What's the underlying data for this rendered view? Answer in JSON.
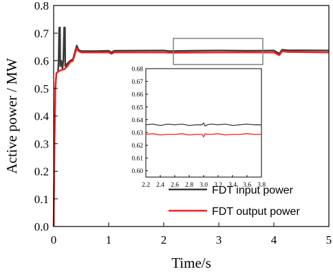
{
  "chart_data": [
    {
      "type": "line",
      "title": "",
      "xlabel": "Time/s",
      "ylabel": "Active power / MW",
      "xlim": [
        0,
        5
      ],
      "ylim": [
        0,
        0.8
      ],
      "xticks": [
        "0",
        "1",
        "2",
        "3",
        "4",
        "5"
      ],
      "yticks": [
        "0.0",
        "0.1",
        "0.2",
        "0.3",
        "0.4",
        "0.5",
        "0.6",
        "0.7",
        "0.8"
      ],
      "legend_position": "bottom-right",
      "grid": false,
      "series": [
        {
          "name": "FDT input power",
          "color": "#3a3a3a",
          "points": [
            [
              0.0,
              0.0
            ],
            [
              0.015,
              0.3
            ],
            [
              0.03,
              0.5
            ],
            [
              0.05,
              0.555
            ],
            [
              0.08,
              0.56
            ],
            [
              0.09,
              0.6
            ],
            [
              0.1,
              0.72
            ],
            [
              0.115,
              0.72
            ],
            [
              0.12,
              0.58
            ],
            [
              0.14,
              0.6
            ],
            [
              0.16,
              0.57
            ],
            [
              0.175,
              0.6
            ],
            [
              0.19,
              0.72
            ],
            [
              0.205,
              0.72
            ],
            [
              0.21,
              0.58
            ],
            [
              0.25,
              0.59
            ],
            [
              0.3,
              0.6
            ],
            [
              0.35,
              0.605
            ],
            [
              0.42,
              0.655
            ],
            [
              0.45,
              0.64
            ],
            [
              0.5,
              0.635
            ],
            [
              0.8,
              0.635
            ],
            [
              1.0,
              0.636
            ],
            [
              1.05,
              0.63
            ],
            [
              1.1,
              0.636
            ],
            [
              2.0,
              0.637
            ],
            [
              2.1,
              0.635
            ],
            [
              2.5,
              0.636
            ],
            [
              3.0,
              0.637
            ],
            [
              3.5,
              0.636
            ],
            [
              4.0,
              0.637
            ],
            [
              4.1,
              0.626
            ],
            [
              4.15,
              0.64
            ],
            [
              4.25,
              0.638
            ],
            [
              5.0,
              0.637
            ]
          ]
        },
        {
          "name": "FDT output power",
          "color": "#ff1a1a",
          "points": [
            [
              0.0,
              0.0
            ],
            [
              0.015,
              0.3
            ],
            [
              0.03,
              0.5
            ],
            [
              0.05,
              0.555
            ],
            [
              0.08,
              0.56
            ],
            [
              0.12,
              0.565
            ],
            [
              0.2,
              0.57
            ],
            [
              0.25,
              0.58
            ],
            [
              0.3,
              0.595
            ],
            [
              0.35,
              0.6
            ],
            [
              0.42,
              0.645
            ],
            [
              0.45,
              0.635
            ],
            [
              0.5,
              0.63
            ],
            [
              1.0,
              0.63
            ],
            [
              1.05,
              0.625
            ],
            [
              1.1,
              0.63
            ],
            [
              2.0,
              0.63
            ],
            [
              2.1,
              0.629
            ],
            [
              3.0,
              0.63
            ],
            [
              4.0,
              0.63
            ],
            [
              4.1,
              0.62
            ],
            [
              4.15,
              0.634
            ],
            [
              4.25,
              0.632
            ],
            [
              5.0,
              0.63
            ]
          ]
        }
      ]
    },
    {
      "type": "line",
      "title": "",
      "xlabel": "",
      "ylabel": "",
      "xlim": [
        2.2,
        3.8
      ],
      "ylim": [
        0.595,
        0.68
      ],
      "xticks": [
        "2.2",
        "2.4",
        "2.6",
        "2.8",
        "3.0",
        "3.2",
        "3.4",
        "3.6",
        "3.8"
      ],
      "yticks": [
        "0.60",
        "0.61",
        "0.62",
        "0.63",
        "0.64",
        "0.65",
        "0.66",
        "0.67",
        "0.68"
      ],
      "grid": false,
      "series": [
        {
          "name": "FDT input power",
          "color": "#3a3a3a",
          "points": [
            [
              2.2,
              0.636
            ],
            [
              2.3,
              0.6365
            ],
            [
              2.4,
              0.6355
            ],
            [
              2.5,
              0.6365
            ],
            [
              2.6,
              0.636
            ],
            [
              2.7,
              0.6365
            ],
            [
              2.8,
              0.6355
            ],
            [
              2.9,
              0.636
            ],
            [
              2.98,
              0.636
            ],
            [
              3.0,
              0.6375
            ],
            [
              3.02,
              0.635
            ],
            [
              3.05,
              0.636
            ],
            [
              3.1,
              0.6365
            ],
            [
              3.2,
              0.636
            ],
            [
              3.3,
              0.6365
            ],
            [
              3.4,
              0.6355
            ],
            [
              3.5,
              0.636
            ],
            [
              3.6,
              0.6365
            ],
            [
              3.7,
              0.636
            ],
            [
              3.8,
              0.636
            ]
          ]
        },
        {
          "name": "FDT output power",
          "color": "#ff1a1a",
          "points": [
            [
              2.2,
              0.6285
            ],
            [
              2.3,
              0.629
            ],
            [
              2.4,
              0.628
            ],
            [
              2.5,
              0.6285
            ],
            [
              2.6,
              0.6285
            ],
            [
              2.7,
              0.629
            ],
            [
              2.8,
              0.628
            ],
            [
              2.9,
              0.6285
            ],
            [
              2.98,
              0.6285
            ],
            [
              3.0,
              0.6265
            ],
            [
              3.02,
              0.629
            ],
            [
              3.05,
              0.6285
            ],
            [
              3.1,
              0.6285
            ],
            [
              3.2,
              0.629
            ],
            [
              3.3,
              0.628
            ],
            [
              3.4,
              0.6285
            ],
            [
              3.5,
              0.6285
            ],
            [
              3.6,
              0.629
            ],
            [
              3.7,
              0.6285
            ],
            [
              3.8,
              0.6285
            ]
          ]
        }
      ]
    }
  ]
}
